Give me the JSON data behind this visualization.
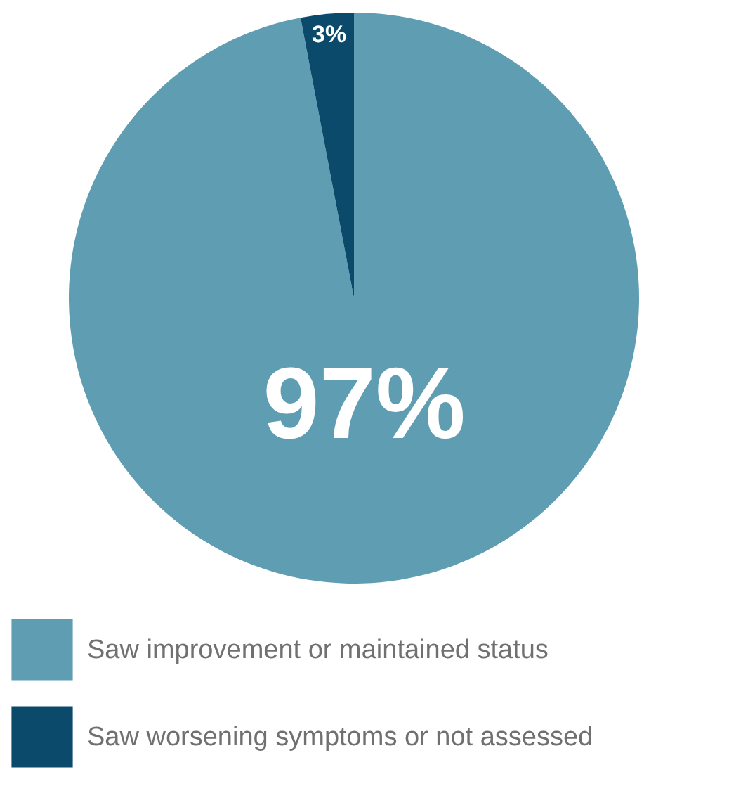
{
  "chart_data": {
    "type": "pie",
    "categories": [
      "Saw improvement or maintained status",
      "Saw worsening symptoms or not assessed"
    ],
    "values": [
      97,
      3
    ],
    "colors": [
      "#5f9db3",
      "#0b4a6b"
    ],
    "value_labels": [
      "97%",
      "3%"
    ],
    "legend": "bottom"
  }
}
